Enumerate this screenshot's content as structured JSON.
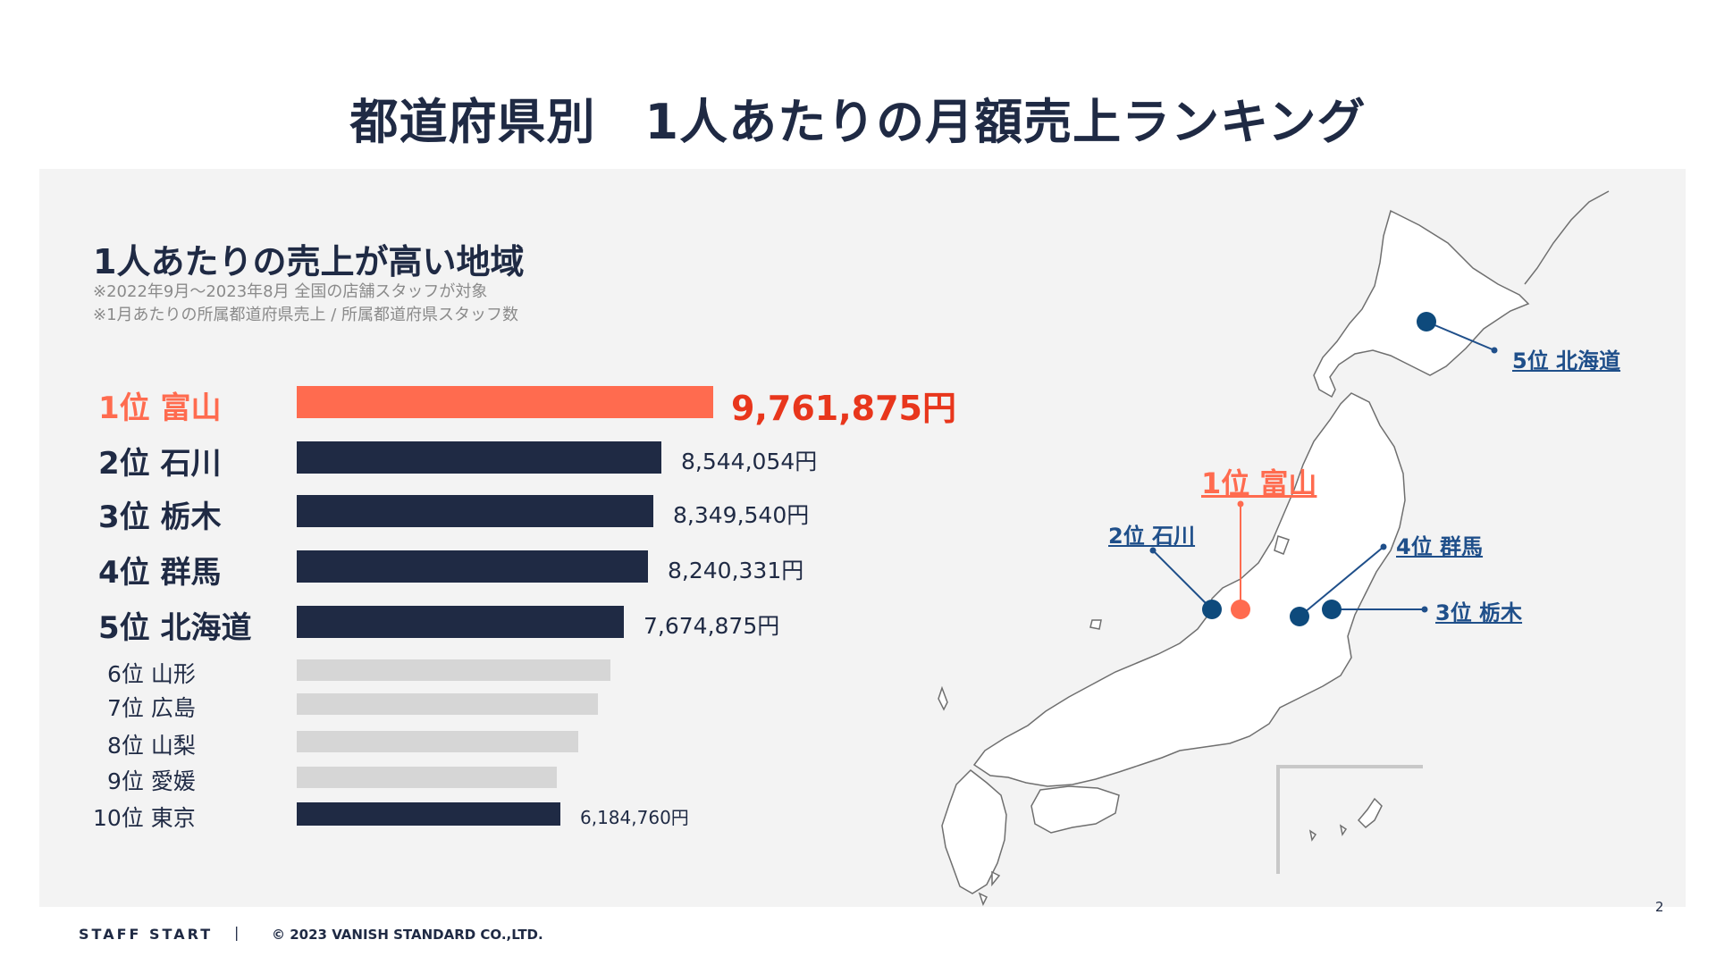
{
  "page_title": "都道府県別　1人あたりの月額売上ランキング",
  "subtitle": "1人あたりの売上が高い地域",
  "notes": [
    "※2022年9月～2023年8月 全国の店舗スタッフが対象",
    "※1月あたりの所属都道府県売上 / 所属都道府県スタッフ数"
  ],
  "chart_data": {
    "type": "bar",
    "orientation": "horizontal",
    "title": "1人あたりの売上が高い地域",
    "unit": "円",
    "categories": [
      "1位 富山",
      "2位 石川",
      "3位 栃木",
      "4位 群馬",
      "5位 北海道",
      "6位 山形",
      "7位 広島",
      "8位 山梨",
      "9位 愛媛",
      "10位 東京"
    ],
    "values": [
      9761875,
      8544054,
      8349540,
      8240331,
      7674875,
      null,
      null,
      null,
      null,
      6184760
    ],
    "value_labels": [
      "9,761,875円",
      "8,544,054円",
      "8,349,540円",
      "8,240,331円",
      "7,674,875円",
      "",
      "",
      "",
      "",
      "6,184,760円"
    ],
    "estimated_values_unlabeled": [
      null,
      null,
      null,
      null,
      null,
      7350000,
      7050000,
      6600000,
      6100000,
      null
    ],
    "colors": {
      "highlight": "#ff6b4f",
      "primary": "#1f2a44",
      "muted": "#d6d6d6",
      "highlight_text": "#e8361c"
    },
    "xlim": [
      0,
      9761875
    ],
    "grid": false,
    "legend": "none"
  },
  "map": {
    "callouts": [
      {
        "label": "5位 北海道",
        "color": "#1f4f8a"
      },
      {
        "label": "1位 富山",
        "color": "#ff6b4f"
      },
      {
        "label": "2位 石川",
        "color": "#1f4f8a"
      },
      {
        "label": "4位 群馬",
        "color": "#1f4f8a"
      },
      {
        "label": "3位 栃木",
        "color": "#1f4f8a"
      }
    ]
  },
  "footer": {
    "brand": "STAFF START",
    "separator": "|",
    "copyright": "© 2023 VANISH STANDARD CO.,LTD.",
    "page_number": "2"
  }
}
